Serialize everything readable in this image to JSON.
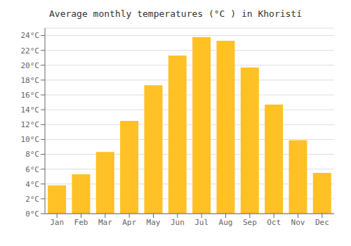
{
  "chart_data": {
    "type": "bar",
    "title": "Average monthly temperatures (°C ) in Khoristí",
    "categories": [
      "Jan",
      "Feb",
      "Mar",
      "Apr",
      "May",
      "Jun",
      "Jul",
      "Aug",
      "Sep",
      "Oct",
      "Nov",
      "Dec"
    ],
    "values": [
      3.8,
      5.3,
      8.3,
      12.5,
      17.3,
      21.3,
      23.8,
      23.3,
      19.7,
      14.7,
      9.9,
      5.5
    ],
    "color": "#FFC125",
    "ylim": [
      0,
      25
    ],
    "yticks": [
      {
        "value": 0,
        "label": "0°C"
      },
      {
        "value": 2,
        "label": "2°C"
      },
      {
        "value": 4,
        "label": "4°C"
      },
      {
        "value": 6,
        "label": "6°C"
      },
      {
        "value": 8,
        "label": "8°C"
      },
      {
        "value": 10,
        "label": "10°C"
      },
      {
        "value": 12,
        "label": "12°C"
      },
      {
        "value": 14,
        "label": "14°C"
      },
      {
        "value": 16,
        "label": "16°C"
      },
      {
        "value": 18,
        "label": "18°C"
      },
      {
        "value": 20,
        "label": "20°C"
      },
      {
        "value": 22,
        "label": "22°C"
      },
      {
        "value": 24,
        "label": "24°C"
      }
    ],
    "grid": true
  }
}
